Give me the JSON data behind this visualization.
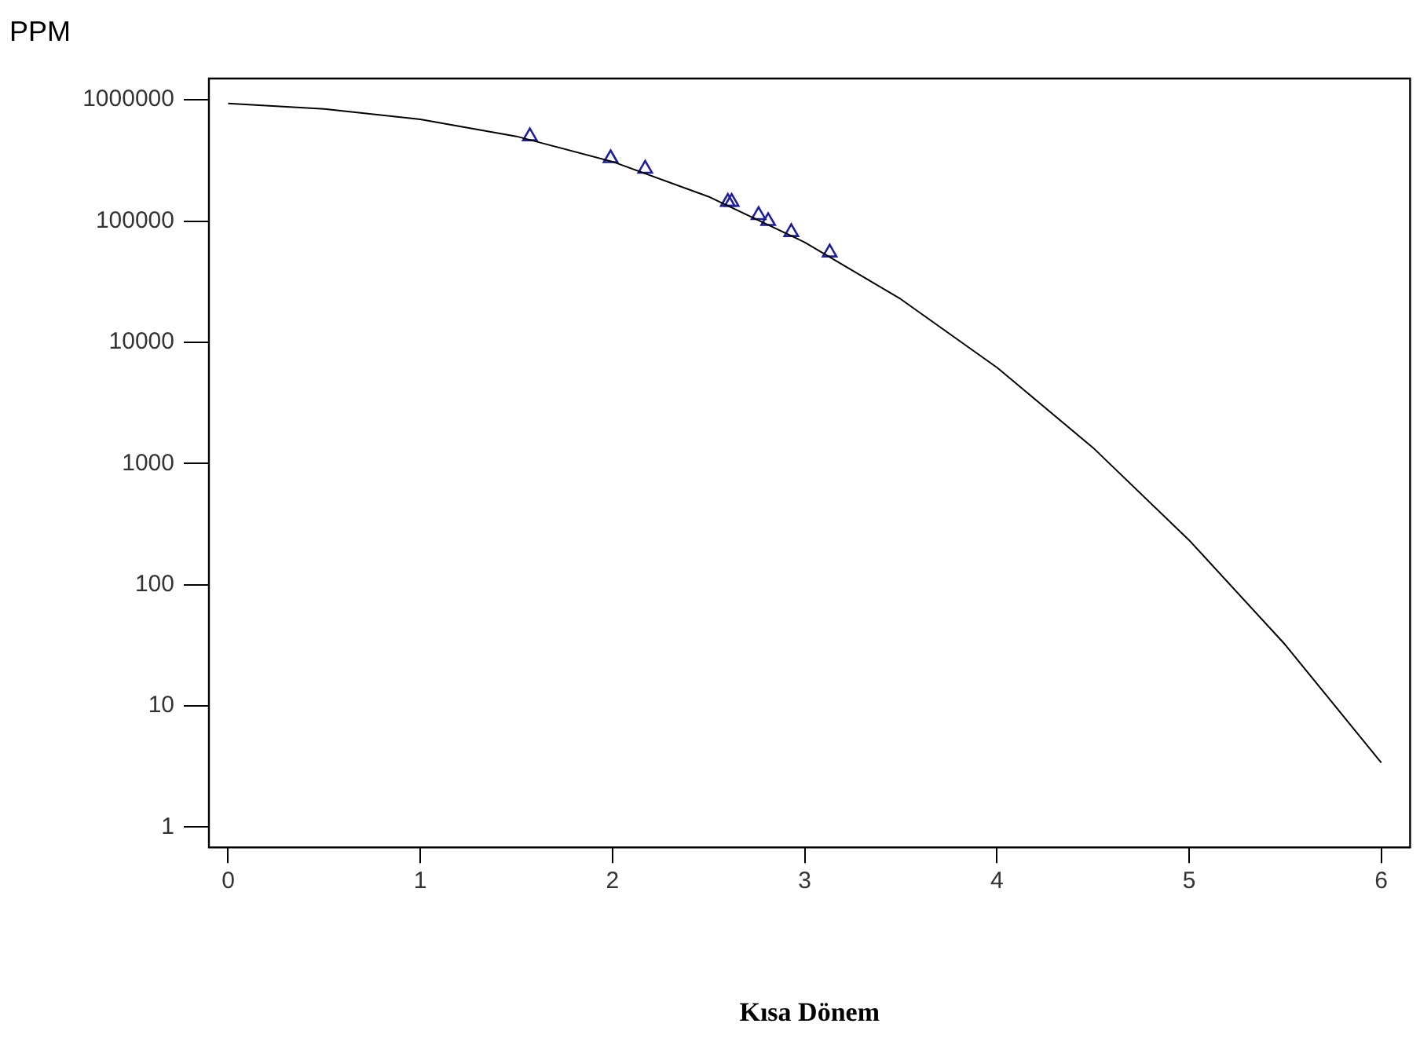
{
  "chart_data": {
    "type": "line",
    "xlabel": "Kısa Dönem",
    "ylabel": "PPM",
    "log": "y",
    "grid": false,
    "legend": false,
    "xlim": [
      -0.1,
      6.15
    ],
    "xticks": [
      0,
      1,
      2,
      3,
      4,
      5,
      6
    ],
    "ylim": [
      0.68,
      1500000
    ],
    "yticks": [
      1,
      10,
      100,
      1000,
      10000,
      100000,
      1000000
    ],
    "series": [
      {
        "type": "line",
        "color": "#000000",
        "marker": "none",
        "line_style": "solid",
        "x": [
          0,
          0.5,
          1,
          1.5,
          2,
          2.5,
          3,
          3.5,
          4,
          4.5,
          5,
          5.5,
          6
        ],
        "values": [
          933000,
          841000,
          691000,
          500000,
          309000,
          159000,
          66800,
          22700,
          6200,
          1350,
          233,
          32,
          3.4
        ]
      },
      {
        "type": "scatter",
        "color": "#1f1f9c",
        "marker": "triangle",
        "x": [
          1.57,
          1.99,
          2.17,
          2.6,
          2.62,
          2.76,
          2.81,
          2.93,
          3.13
        ],
        "values": [
          500000,
          330000,
          270000,
          144000,
          144000,
          112000,
          100000,
          81000,
          55000
        ]
      }
    ]
  }
}
